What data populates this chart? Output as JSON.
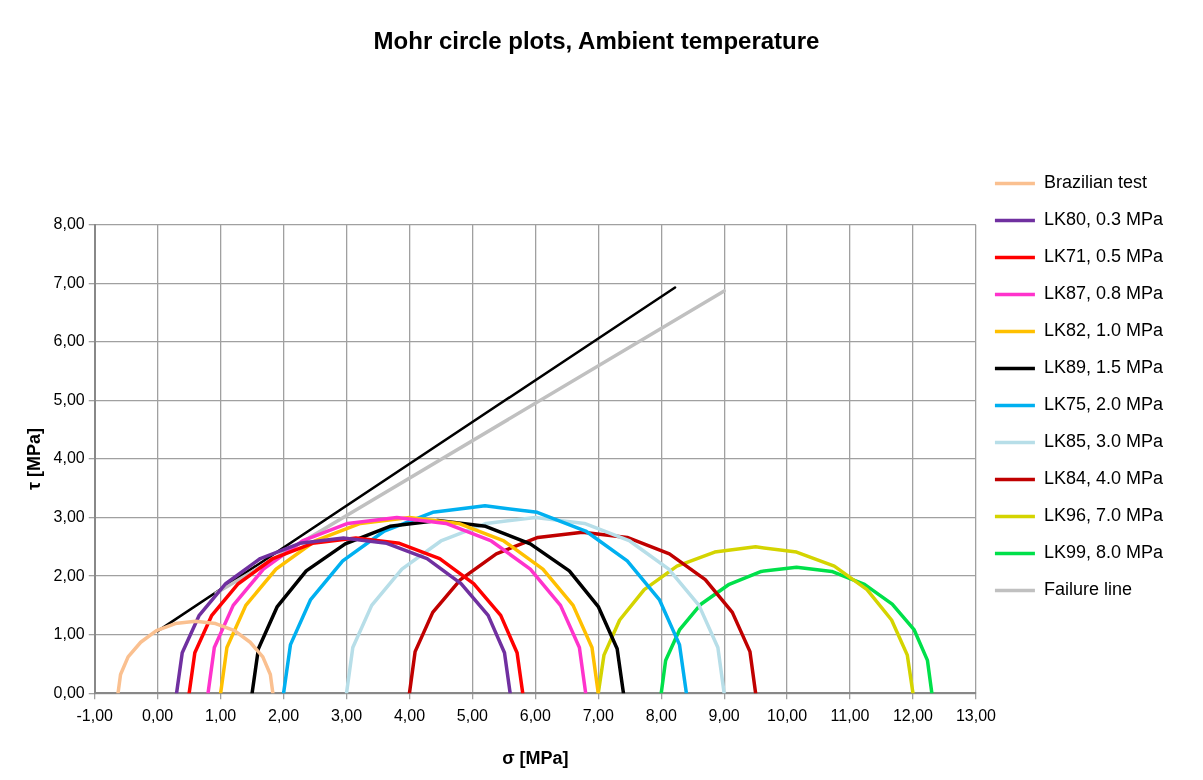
{
  "chart_data": {
    "type": "line",
    "title": "Mohr circle plots, Ambient temperature",
    "xlabel": "σ [MPa]",
    "ylabel": "τ [MPa]",
    "xlim": [
      -1,
      13
    ],
    "xticks": [
      {
        "value": -1,
        "label": "-1,00"
      },
      {
        "value": 0,
        "label": "0,00"
      },
      {
        "value": 1,
        "label": "1,00"
      },
      {
        "value": 2,
        "label": "2,00"
      },
      {
        "value": 3,
        "label": "3,00"
      },
      {
        "value": 4,
        "label": "4,00"
      },
      {
        "value": 5,
        "label": "5,00"
      },
      {
        "value": 6,
        "label": "6,00"
      },
      {
        "value": 7,
        "label": "7,00"
      },
      {
        "value": 8,
        "label": "8,00"
      },
      {
        "value": 9,
        "label": "9,00"
      },
      {
        "value": 10,
        "label": "10,00"
      },
      {
        "value": 11,
        "label": "11,00"
      },
      {
        "value": 12,
        "label": "12,00"
      },
      {
        "value": 13,
        "label": "13,00"
      }
    ],
    "ylim": [
      0,
      8
    ],
    "yticks": [
      {
        "value": 0,
        "label": "0,00"
      },
      {
        "value": 1,
        "label": "1,00"
      },
      {
        "value": 2,
        "label": "2,00"
      },
      {
        "value": 3,
        "label": "3,00"
      },
      {
        "value": 4,
        "label": "4,00"
      },
      {
        "value": 5,
        "label": "5,00"
      },
      {
        "value": 6,
        "label": "6,00"
      },
      {
        "value": 7,
        "label": "7,00"
      },
      {
        "value": 8,
        "label": "8,00"
      }
    ],
    "grid": true,
    "legend": "right",
    "marker": "none",
    "line_style": "solid",
    "series": [
      {
        "name": "Brazilian test",
        "color": "#fac090",
        "x": [
          -0.63,
          -0.59,
          -0.47,
          -0.27,
          -0.02,
          0.28,
          0.6,
          0.92,
          1.22,
          1.47,
          1.67,
          1.79,
          1.83
        ],
        "values": [
          0,
          0.32,
          0.62,
          0.87,
          1.07,
          1.19,
          1.23,
          1.19,
          1.07,
          0.87,
          0.62,
          0.32,
          0
        ]
      },
      {
        "name": "LK80, 0.3 MPa",
        "color": "#7030a0",
        "x": [
          0.3,
          0.39,
          0.66,
          1.08,
          1.63,
          2.26,
          2.95,
          3.64,
          4.28,
          4.82,
          5.25,
          5.51,
          5.6
        ],
        "values": [
          0,
          0.69,
          1.33,
          1.87,
          2.3,
          2.56,
          2.65,
          2.56,
          2.3,
          1.87,
          1.33,
          0.69,
          0
        ]
      },
      {
        "name": "LK71, 0.5 MPa",
        "color": "#ff0000",
        "x": [
          0.5,
          0.59,
          0.86,
          1.28,
          1.83,
          2.46,
          3.15,
          3.84,
          4.48,
          5.02,
          5.45,
          5.71,
          5.8
        ],
        "values": [
          0,
          0.69,
          1.33,
          1.87,
          2.3,
          2.56,
          2.65,
          2.56,
          2.3,
          1.87,
          1.33,
          0.69,
          0
        ]
      },
      {
        "name": "LK87, 0.8 MPa",
        "color": "#ff33cc",
        "x": [
          0.8,
          0.9,
          1.2,
          1.68,
          2.3,
          3.02,
          3.8,
          4.58,
          5.3,
          5.92,
          6.4,
          6.7,
          6.8
        ],
        "values": [
          0,
          0.78,
          1.5,
          2.12,
          2.6,
          2.9,
          3,
          2.9,
          2.6,
          2.12,
          1.5,
          0.78,
          0
        ]
      },
      {
        "name": "LK82, 1.0 MPa",
        "color": "#ffc000",
        "x": [
          1,
          1.1,
          1.4,
          1.88,
          2.5,
          3.22,
          4,
          4.78,
          5.5,
          6.12,
          6.6,
          6.9,
          7
        ],
        "values": [
          0,
          0.78,
          1.5,
          2.12,
          2.6,
          2.9,
          3,
          2.9,
          2.6,
          2.12,
          1.5,
          0.78,
          0
        ]
      },
      {
        "name": "LK89, 1.5 MPa",
        "color": "#000000",
        "x": [
          1.5,
          1.6,
          1.9,
          2.36,
          2.98,
          3.69,
          4.45,
          5.21,
          5.92,
          6.54,
          7,
          7.3,
          7.4
        ],
        "values": [
          0,
          0.76,
          1.48,
          2.09,
          2.55,
          2.85,
          2.95,
          2.85,
          2.55,
          2.09,
          1.48,
          0.76,
          0
        ]
      },
      {
        "name": "LK75, 2.0 MPa",
        "color": "#00b0f0",
        "x": [
          2,
          2.11,
          2.43,
          2.94,
          3.6,
          4.37,
          5.2,
          6.03,
          6.8,
          7.46,
          7.97,
          8.29,
          8.4
        ],
        "values": [
          0,
          0.83,
          1.6,
          2.26,
          2.77,
          3.09,
          3.2,
          3.09,
          2.77,
          2.26,
          1.6,
          0.83,
          0
        ]
      },
      {
        "name": "LK85, 3.0 MPa",
        "color": "#b7dee8",
        "x": [
          3,
          3.1,
          3.4,
          3.88,
          4.5,
          5.22,
          6,
          6.78,
          7.5,
          8.12,
          8.6,
          8.9,
          9
        ],
        "values": [
          0,
          0.78,
          1.5,
          2.12,
          2.6,
          2.9,
          3,
          2.9,
          2.6,
          2.12,
          1.5,
          0.78,
          0
        ]
      },
      {
        "name": "LK84, 4.0 MPa",
        "color": "#c00000",
        "x": [
          4,
          4.09,
          4.37,
          4.81,
          5.38,
          6.04,
          6.75,
          7.46,
          8.13,
          8.7,
          9.13,
          9.41,
          9.5
        ],
        "values": [
          0,
          0.71,
          1.38,
          1.94,
          2.38,
          2.66,
          2.75,
          2.66,
          2.38,
          1.94,
          1.38,
          0.71,
          0
        ]
      },
      {
        "name": "LK96, 7.0 MPa",
        "color": "#d4d400",
        "x": [
          7,
          7.09,
          7.34,
          7.73,
          8.25,
          8.85,
          9.5,
          10.15,
          10.75,
          11.27,
          11.66,
          11.91,
          12
        ],
        "values": [
          0,
          0.65,
          1.25,
          1.77,
          2.17,
          2.41,
          2.5,
          2.41,
          2.17,
          1.77,
          1.25,
          0.65,
          0
        ]
      },
      {
        "name": "LK99, 8.0 MPa",
        "color": "#00e04a",
        "x": [
          8,
          8.07,
          8.29,
          8.63,
          9.08,
          9.59,
          10.15,
          10.71,
          11.23,
          11.67,
          12.02,
          12.23,
          12.3
        ],
        "values": [
          0,
          0.56,
          1.08,
          1.52,
          1.86,
          2.08,
          2.15,
          2.08,
          1.86,
          1.52,
          1.08,
          0.56,
          0
        ]
      },
      {
        "name": "Failure line",
        "color": "#c0c0c0",
        "x": [
          0.93,
          9.0
        ],
        "values": [
          1.71,
          6.87
        ]
      },
      {
        "color": "#000000",
        "x": [
          0,
          8.22
        ],
        "values": [
          1.06,
          6.93
        ]
      }
    ]
  }
}
